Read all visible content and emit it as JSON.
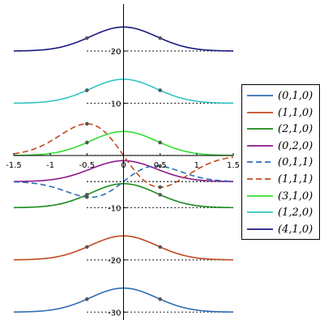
{
  "chart_data": {
    "type": "line",
    "title": "",
    "xlabel": "",
    "ylabel": "",
    "xlim": [
      -1.5,
      1.5
    ],
    "ylim": [
      -31.5,
      29
    ],
    "x_ticks": [
      {
        "value": -1.5,
        "label": "-1.5"
      },
      {
        "value": -1,
        "label": "-1"
      },
      {
        "value": -0.5,
        "label": "-0.5"
      },
      {
        "value": 0,
        "label": "0"
      },
      {
        "value": 0.5,
        "label": "0.5"
      },
      {
        "value": 1,
        "label": "1"
      },
      {
        "value": 1.5,
        "label": "1.5"
      }
    ],
    "y_ticks": [
      {
        "value": 20,
        "label": "20"
      },
      {
        "value": 10,
        "label": "10"
      },
      {
        "value": -10,
        "label": "-10"
      },
      {
        "value": -20,
        "label": "-20"
      },
      {
        "value": -30,
        "label": "-30"
      }
    ],
    "grid": false,
    "legend_position": "right",
    "series": [
      {
        "name": "(0,1,0)",
        "color": "#2e6db4",
        "dash": false,
        "form": "gauss",
        "baseline": -30,
        "amp": 4.6,
        "width": 0.45,
        "dots": true
      },
      {
        "name": "(1,1,0)",
        "color": "#c0491f",
        "dash": false,
        "form": "gauss",
        "baseline": -20,
        "amp": 4.6,
        "width": 0.45,
        "dots": true
      },
      {
        "name": "(2,1,0)",
        "color": "#1a8a1a",
        "dash": false,
        "form": "gauss",
        "baseline": -10,
        "amp": 4.6,
        "width": 0.45,
        "dots": true
      },
      {
        "name": "(0,2,0)",
        "color": "#8a1a8a",
        "dash": false,
        "form": "gauss",
        "baseline": -5,
        "amp": 4.0,
        "width": 0.45,
        "dots": false
      },
      {
        "name": "(0,1,1)",
        "color": "#2e6db4",
        "dash": true,
        "form": "wiggle",
        "baseline": -5,
        "amp": 11,
        "width": 0.45,
        "dots": true
      },
      {
        "name": "(1,1,1)",
        "color": "#c0491f",
        "dash": true,
        "form": "wiggle",
        "baseline": 0,
        "amp": -20,
        "width": 0.5,
        "dots": true
      },
      {
        "name": "(3,1,0)",
        "color": "#33dd33",
        "dash": false,
        "form": "gauss",
        "baseline": 0,
        "amp": 4.6,
        "width": 0.45,
        "dots": true
      },
      {
        "name": "(1,2,0)",
        "color": "#33c4c4",
        "dash": false,
        "form": "gauss",
        "baseline": 10,
        "amp": 4.6,
        "width": 0.45,
        "dots": true
      },
      {
        "name": "(4,1,0)",
        "color": "#1a1a80",
        "dash": false,
        "form": "gauss",
        "baseline": 20,
        "amp": 4.6,
        "width": 0.45,
        "dots": true
      }
    ]
  }
}
